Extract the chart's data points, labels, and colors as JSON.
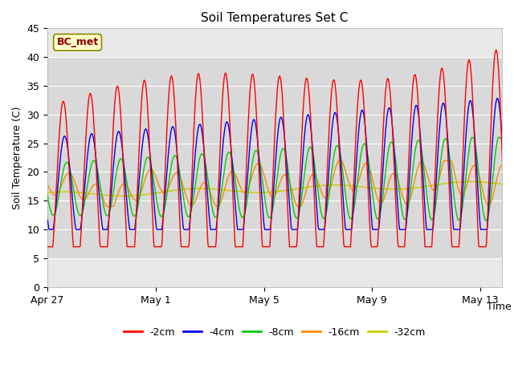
{
  "title": "Soil Temperatures Set C",
  "xlabel": "Time",
  "ylabel": "Soil Temperature (C)",
  "ylim": [
    0,
    45
  ],
  "yticks": [
    0,
    5,
    10,
    15,
    20,
    25,
    30,
    35,
    40,
    45
  ],
  "annotation": "BC_met",
  "bg_inner": "#e8e8e8",
  "bg_outer": "#ffffff",
  "legend_labels": [
    "-2cm",
    "-4cm",
    "-8cm",
    "-16cm",
    "-32cm"
  ],
  "legend_colors": [
    "#ff0000",
    "#0000ee",
    "#00cc00",
    "#ff8800",
    "#cccc00"
  ],
  "xtick_positions": [
    0,
    4,
    8,
    12,
    16
  ],
  "xtick_labels": [
    "Apr 27",
    "May 1",
    "May 5",
    "May 9",
    "May 13"
  ],
  "n_days": 17,
  "samples_per_day": 48,
  "shaded_band": [
    5,
    40
  ]
}
